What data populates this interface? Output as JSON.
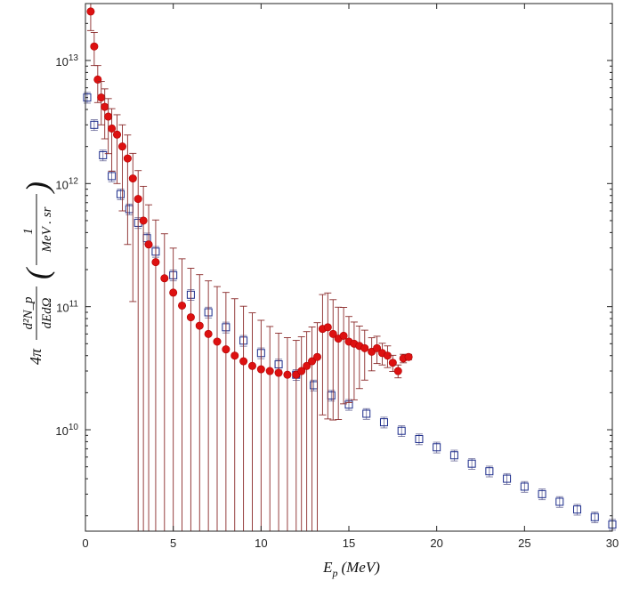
{
  "chart_data": {
    "type": "scatter",
    "xlabel": "E_p (MeV)",
    "xlabel_base": "E",
    "xlabel_sub": "p",
    "xlabel_unit": "(MeV)",
    "ylabel_prefix": "4π",
    "ylabel_fraction_num": "d²N_p",
    "ylabel_fraction_den": "dEdΩ",
    "ylabel_unit_num": "1",
    "ylabel_unit_den": "MeV . sr",
    "xlim": [
      0,
      30
    ],
    "ylim": [
      1500000000.0,
      29000000000000.0
    ],
    "yscale": "log",
    "xticks": [
      0,
      5,
      10,
      15,
      20,
      25,
      30
    ],
    "yticks": [
      {
        "value": 10000000000.0,
        "base": "10",
        "exp": "10"
      },
      {
        "value": 100000000000.0,
        "base": "10",
        "exp": "11"
      },
      {
        "value": 1000000000000.0,
        "base": "10",
        "exp": "12"
      },
      {
        "value": 10000000000000.0,
        "base": "10",
        "exp": "13"
      }
    ],
    "grid": false,
    "legend": "none",
    "series": [
      {
        "marker": "open-square",
        "color": "#1a2a8a",
        "error_color": "#6b6b9a",
        "x": [
          0.1,
          0.5,
          1.0,
          1.5,
          2.0,
          2.5,
          3.0,
          3.5,
          4.0,
          5.0,
          6.0,
          7.0,
          8.0,
          9.0,
          10.0,
          11.0,
          12.0,
          13.0,
          14.0,
          15.0,
          16.0,
          17.0,
          18.0,
          19.0,
          20.0,
          21.0,
          22.0,
          23.0,
          24.0,
          25.0,
          26.0,
          27.0,
          28.0,
          29.0,
          30.0
        ],
        "y": [
          5000000000000.0,
          3000000000000.0,
          1700000000000.0,
          1150000000000.0,
          820000000000.0,
          620000000000.0,
          480000000000.0,
          360000000000.0,
          280000000000.0,
          180000000000.0,
          125000000000.0,
          90000000000.0,
          68000000000.0,
          53000000000.0,
          42000000000.0,
          34000000000.0,
          28000000000.0,
          23000000000.0,
          19000000000.0,
          16000000000.0,
          13500000000.0,
          11500000000.0,
          9800000000.0,
          8400000000.0,
          7200000000.0,
          6200000000.0,
          5300000000.0,
          4600000000.0,
          4000000000.0,
          3450000000.0,
          3000000000.0,
          2600000000.0,
          2250000000.0,
          1950000000.0,
          1700000000.0
        ],
        "err_frac": 0.05
      },
      {
        "marker": "filled-circle",
        "color": "#dd1111",
        "error_color": "#8a2a2a",
        "x": [
          0.3,
          0.5,
          0.7,
          0.9,
          1.1,
          1.3,
          1.5,
          1.8,
          2.1,
          2.4,
          2.7,
          3.0,
          3.3,
          3.6,
          4.0,
          4.5,
          5.0,
          5.5,
          6.0,
          6.5,
          7.0,
          7.5,
          8.0,
          8.5,
          9.0,
          9.5,
          10.0,
          10.5,
          11.0,
          11.5,
          12.0,
          12.3,
          12.6,
          12.9,
          13.2,
          13.5,
          13.8,
          14.1,
          14.4,
          14.7,
          15.0,
          15.3,
          15.6,
          15.9,
          16.3,
          16.6,
          16.9,
          17.2,
          17.5,
          17.8,
          18.1,
          18.4
        ],
        "y": [
          25000000000000.0,
          13000000000000.0,
          7000000000000.0,
          5000000000000.0,
          4200000000000.0,
          3500000000000.0,
          2800000000000.0,
          2500000000000.0,
          2000000000000.0,
          1600000000000.0,
          1100000000000.0,
          750000000000.0,
          500000000000.0,
          320000000000.0,
          230000000000.0,
          170000000000.0,
          130000000000.0,
          102000000000.0,
          82000000000.0,
          70000000000.0,
          60000000000.0,
          52000000000.0,
          45000000000.0,
          40000000000.0,
          36000000000.0,
          33000000000.0,
          31000000000.0,
          30000000000.0,
          29000000000.0,
          28000000000.0,
          28000000000.0,
          30000000000.0,
          33000000000.0,
          36000000000.0,
          39000000000.0,
          66000000000.0,
          68000000000.0,
          60000000000.0,
          55000000000.0,
          58000000000.0,
          52000000000.0,
          50000000000.0,
          48000000000.0,
          46000000000.0,
          43000000000.0,
          46000000000.0,
          42000000000.0,
          40000000000.0,
          35000000000.0,
          30000000000.0,
          38000000000.0,
          39000000000.0
        ],
        "err_low": [
          0.3,
          0.3,
          0.35,
          0.4,
          0.45,
          0.5,
          0.55,
          0.6,
          0.7,
          0.8,
          0.9,
          0.999,
          0.999,
          0.999,
          0.999,
          0.999,
          0.999,
          0.999,
          0.999,
          0.999,
          0.999,
          0.999,
          0.999,
          0.999,
          0.999,
          0.999,
          0.999,
          0.999,
          0.999,
          0.999,
          0.999,
          0.999,
          0.999,
          0.999,
          0.999,
          0.8,
          0.82,
          0.8,
          0.78,
          0.72,
          0.68,
          0.65,
          0.55,
          0.45,
          0.3,
          0.25,
          0.2,
          0.2,
          0.15,
          0.12,
          0.08,
          0.05
        ],
        "err_high": [
          0.3,
          0.3,
          0.3,
          0.35,
          0.4,
          0.4,
          0.45,
          0.45,
          0.5,
          0.55,
          0.6,
          0.7,
          0.9,
          1.1,
          1.2,
          1.3,
          1.3,
          1.4,
          1.5,
          1.6,
          1.7,
          1.8,
          1.9,
          1.9,
          1.8,
          1.7,
          1.5,
          1.3,
          1.1,
          1.0,
          0.9,
          0.9,
          0.9,
          0.9,
          0.9,
          0.9,
          0.9,
          0.9,
          0.8,
          0.7,
          0.6,
          0.5,
          0.45,
          0.4,
          0.3,
          0.25,
          0.2,
          0.2,
          0.15,
          0.12,
          0.08,
          0.05
        ]
      }
    ]
  }
}
